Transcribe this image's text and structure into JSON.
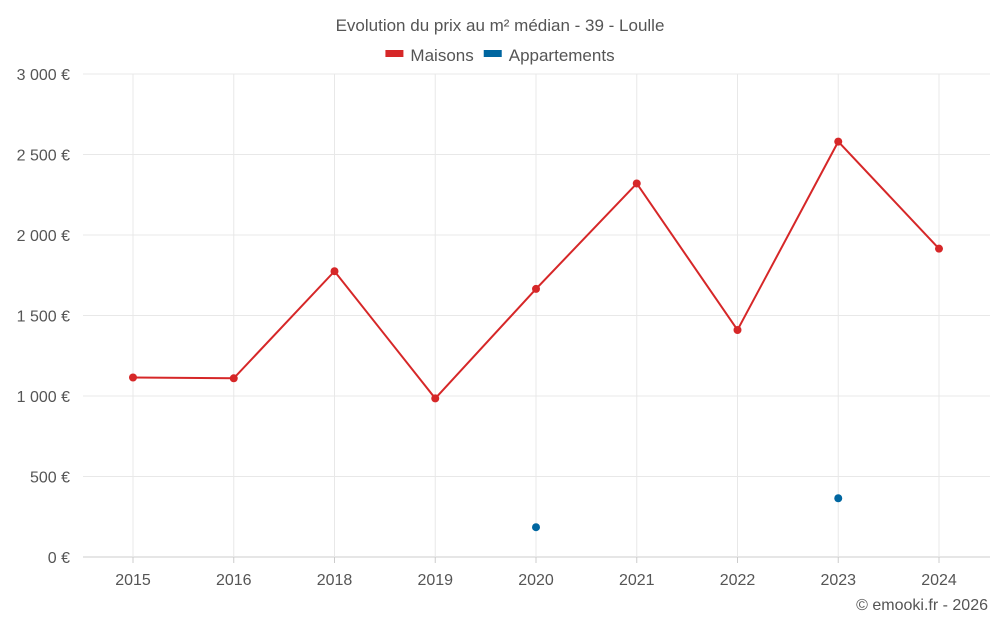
{
  "chart_data": {
    "type": "line",
    "title": "Evolution du prix au m² médian - 39 - Loulle",
    "categories": [
      "2015",
      "2016",
      "2018",
      "2019",
      "2020",
      "2021",
      "2022",
      "2023",
      "2024"
    ],
    "y_ticks": [
      "0 €",
      "500 €",
      "1 000 €",
      "1 500 €",
      "2 000 €",
      "2 500 €",
      "3 000 €"
    ],
    "ylim": [
      0,
      3000
    ],
    "grid": true,
    "legend_position": "top-center",
    "series": [
      {
        "name": "Maisons",
        "color": "#d62728",
        "values": [
          1115,
          1110,
          1775,
          985,
          1665,
          2320,
          1410,
          2580,
          1915
        ]
      },
      {
        "name": "Appartements",
        "color": "#0066a0",
        "values": [
          null,
          null,
          null,
          null,
          185,
          null,
          null,
          365,
          null
        ]
      }
    ]
  },
  "footer": "© emooki.fr - 2026"
}
